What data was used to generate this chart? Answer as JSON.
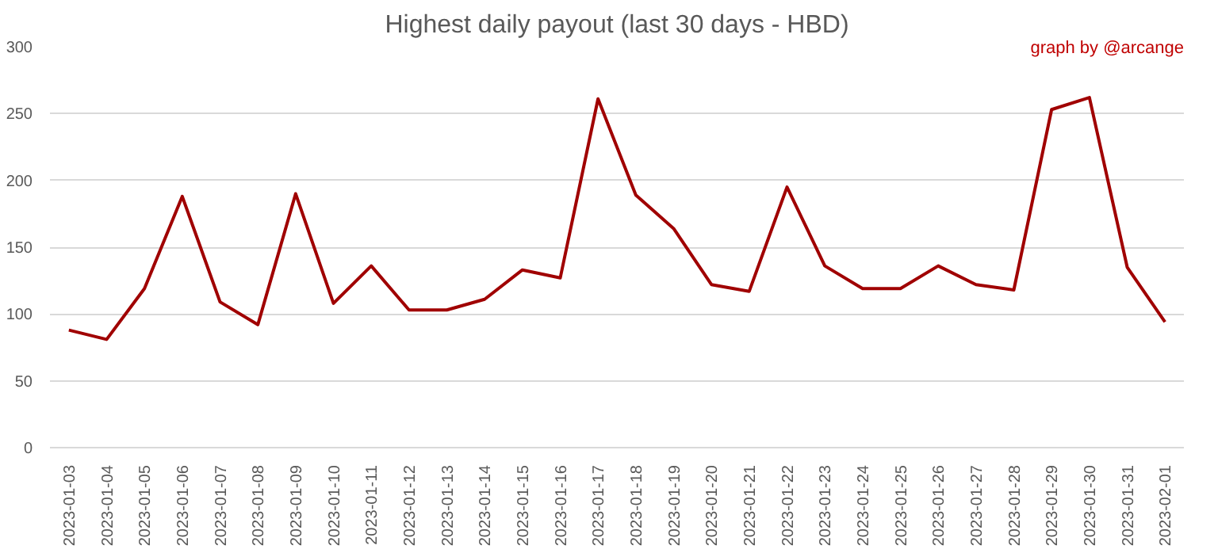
{
  "chart_data": {
    "type": "line",
    "title": "Highest daily payout (last 30 days - HBD)",
    "annotations": [
      "graph by @arcange"
    ],
    "categories": [
      "2023-01-03",
      "2023-01-04",
      "2023-01-05",
      "2023-01-06",
      "2023-01-07",
      "2023-01-08",
      "2023-01-09",
      "2023-01-10",
      "2023-01-11",
      "2023-01-12",
      "2023-01-13",
      "2023-01-14",
      "2023-01-15",
      "2023-01-16",
      "2023-01-17",
      "2023-01-18",
      "2023-01-19",
      "2023-01-20",
      "2023-01-21",
      "2023-01-22",
      "2023-01-23",
      "2023-01-24",
      "2023-01-25",
      "2023-01-26",
      "2023-01-27",
      "2023-01-28",
      "2023-01-29",
      "2023-01-30",
      "2023-01-31",
      "2023-02-01"
    ],
    "series": [
      {
        "color": "#a00000",
        "values": [
          88,
          81,
          119,
          188,
          109,
          92,
          190,
          108,
          136,
          103,
          103,
          111,
          133,
          127,
          261,
          189,
          164,
          122,
          117,
          195,
          136,
          119,
          119,
          136,
          122,
          118,
          253,
          262,
          135,
          94
        ]
      }
    ],
    "ylim": [
      0,
      300
    ],
    "yticks": [
      0,
      50,
      100,
      150,
      200,
      250,
      300
    ],
    "grid": "y",
    "marker": "none",
    "line_style": "solid"
  }
}
